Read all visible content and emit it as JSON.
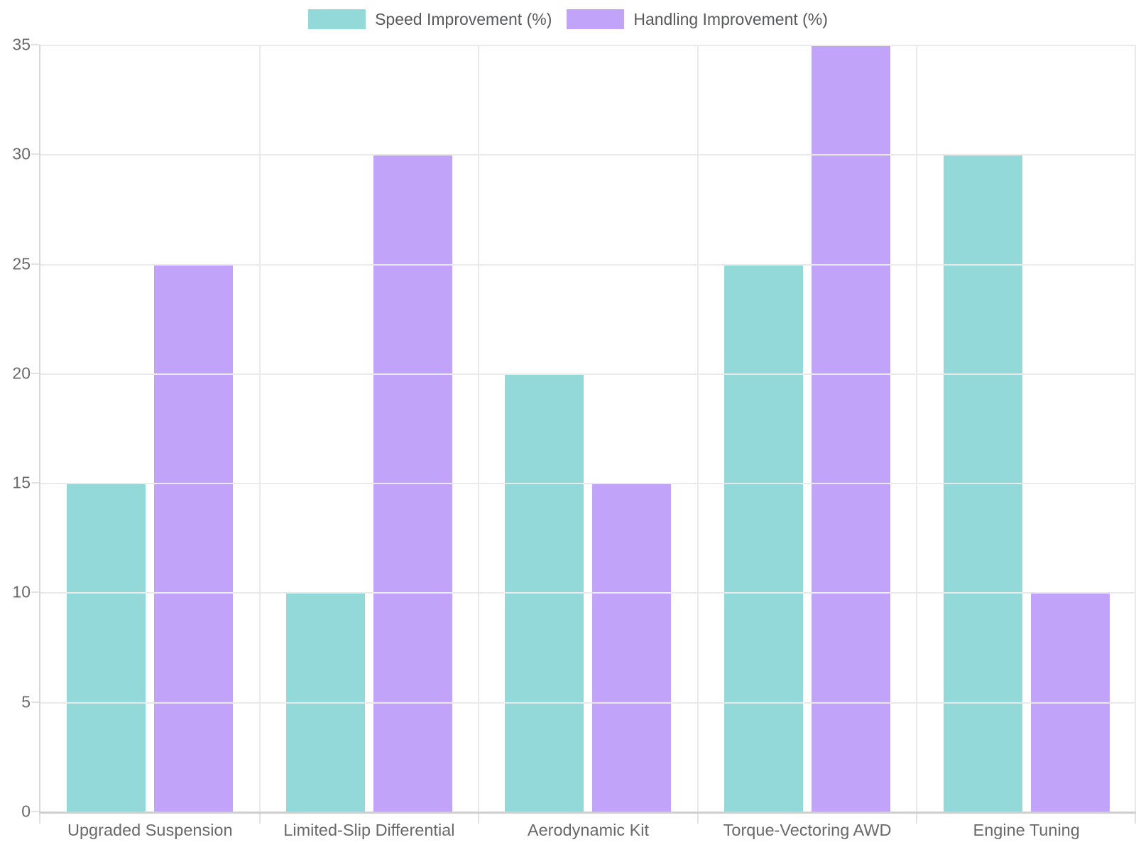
{
  "chart_data": {
    "type": "bar",
    "title": "",
    "categories": [
      "Upgraded Suspension",
      "Limited-Slip Differential",
      "Aerodynamic Kit",
      "Torque-Vectoring AWD",
      "Engine Tuning"
    ],
    "series": [
      {
        "name": "Speed Improvement (%)",
        "color": "#93d9da",
        "values": [
          15,
          10,
          20,
          25,
          30
        ]
      },
      {
        "name": "Handling Improvement (%)",
        "color": "#c1a4fa",
        "values": [
          25,
          30,
          15,
          35,
          10
        ]
      }
    ],
    "xlabel": "",
    "ylabel": "",
    "ylim": [
      0,
      35
    ],
    "yticks": [
      0,
      5,
      10,
      15,
      20,
      25,
      30,
      35
    ],
    "grid": true,
    "legend_position": "top",
    "colors": {
      "gridline": "#eaeaea",
      "axis_line": "#cfcfcf",
      "tick_mark": "#e2e2e2",
      "tick_text": "#696969",
      "legend_text": "#58595b",
      "background": "#ffffff"
    }
  }
}
